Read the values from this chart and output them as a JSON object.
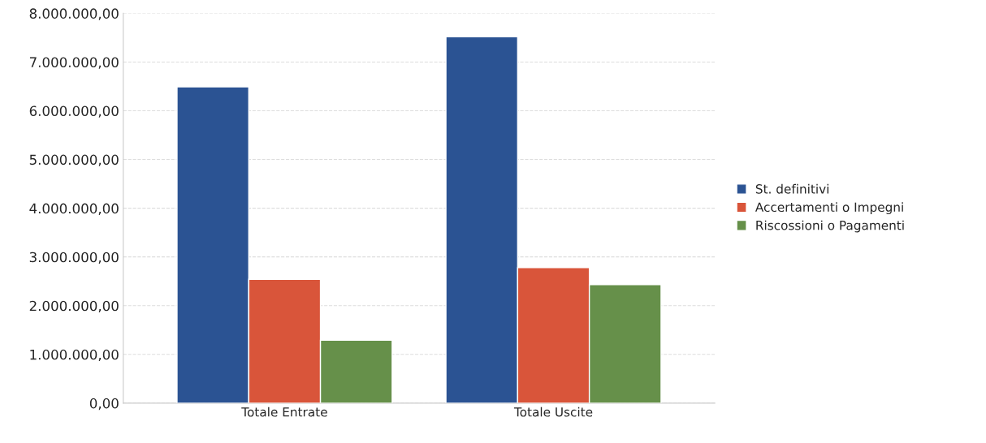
{
  "chart_data": {
    "type": "bar",
    "categories": [
      "Totale Entrate",
      "Totale Uscite"
    ],
    "series": [
      {
        "name": "St. definitivi",
        "color": "#2b5393",
        "values": [
          6490000,
          7520000
        ]
      },
      {
        "name": "Accertamenti o Impegni",
        "color": "#d9553a",
        "values": [
          2540000,
          2780000
        ]
      },
      {
        "name": "Riscossioni o Pagamenti",
        "color": "#66904a",
        "values": [
          1290000,
          2430000
        ]
      }
    ],
    "ylim": [
      0,
      8000000
    ],
    "yticks": [
      {
        "value": 0,
        "label": "0,00"
      },
      {
        "value": 1000000,
        "label": "1.000.000,00"
      },
      {
        "value": 2000000,
        "label": "2.000.000,00"
      },
      {
        "value": 3000000,
        "label": "3.000.000,00"
      },
      {
        "value": 4000000,
        "label": "4.000.000,00"
      },
      {
        "value": 5000000,
        "label": "5.000.000,00"
      },
      {
        "value": 6000000,
        "label": "6.000.000,00"
      },
      {
        "value": 7000000,
        "label": "7.000.000,00"
      },
      {
        "value": 8000000,
        "label": "8.000.000,00"
      }
    ],
    "grid": "y",
    "legend": "right"
  }
}
